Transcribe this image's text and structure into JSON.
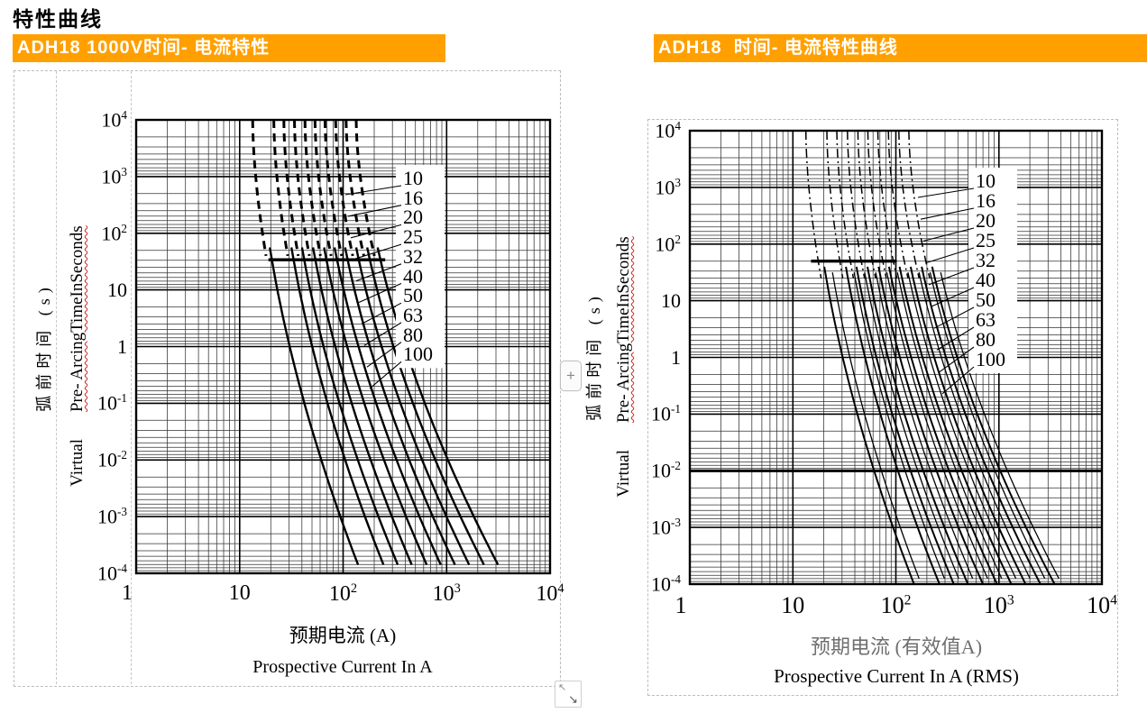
{
  "page": {
    "title": "特性曲线"
  },
  "panels": {
    "left_header": "ADH18 1000V时间- 电流特性",
    "right_header": "ADH18  时间- 电流特性曲线"
  },
  "colors": {
    "header_bg": "#FFA000",
    "header_text": "#FFFFFF",
    "spellcheck_underline": "#CC2222",
    "grid": "#000000"
  },
  "icons": {
    "plus": "+",
    "resize_nw": "↖",
    "resize_se": "↘"
  },
  "chart_data": [
    {
      "type": "line",
      "title": "ADH18 1000V时间- 电流特性",
      "x_scale": "log",
      "y_scale": "log",
      "xlim": [
        1,
        10000
      ],
      "ylim": [
        0.0001,
        10000
      ],
      "grid": "on",
      "x_ticks": [
        "1",
        "10",
        "10^2",
        "10^3",
        "10^4"
      ],
      "y_ticks": [
        "10^4",
        "10^3",
        "10^2",
        "10",
        "1",
        "10^-1",
        "10^-2",
        "10^-3",
        "10^-4"
      ],
      "xlabel_zh": "预期电流 (A)",
      "xlabel_en": "Prospective Current In A",
      "ylabel_zh": "弧前时间 (s)",
      "ylabel_en_plain": "Virtual",
      "ylabel_en_wavy": "Pre- ArcingTimeInSeconds",
      "curve_labels": [
        "10",
        "16",
        "20",
        "25",
        "32",
        "40",
        "50",
        "63",
        "80",
        "100"
      ],
      "upper_style": "dashed",
      "plateau": {
        "time_s": 34,
        "from_A": 19,
        "to_A": 255
      },
      "series": [
        {
          "name": "10",
          "rating_A": 10,
          "current_at_10000s_A": 15,
          "current_at_0.0001s_A": 150
        },
        {
          "name": "16",
          "rating_A": 16,
          "current_at_10000s_A": 24,
          "current_at_0.0001s_A": 265
        },
        {
          "name": "20",
          "rating_A": 20,
          "current_at_10000s_A": 30,
          "current_at_0.0001s_A": 365
        },
        {
          "name": "25",
          "rating_A": 25,
          "current_at_10000s_A": 38,
          "current_at_0.0001s_A": 500
        },
        {
          "name": "32",
          "rating_A": 32,
          "current_at_10000s_A": 48,
          "current_at_0.0001s_A": 700
        },
        {
          "name": "40",
          "rating_A": 40,
          "current_at_10000s_A": 60,
          "current_at_0.0001s_A": 960
        },
        {
          "name": "50",
          "rating_A": 50,
          "current_at_10000s_A": 75,
          "current_at_0.0001s_A": 1320
        },
        {
          "name": "63",
          "rating_A": 63,
          "current_at_10000s_A": 95,
          "current_at_0.0001s_A": 1815
        },
        {
          "name": "80",
          "rating_A": 80,
          "current_at_10000s_A": 120,
          "current_at_0.0001s_A": 2530
        },
        {
          "name": "100",
          "rating_A": 100,
          "current_at_10000s_A": 150,
          "current_at_0.0001s_A": 3470
        }
      ]
    },
    {
      "type": "line",
      "title": "ADH18 时间- 电流特性曲线",
      "x_scale": "log",
      "y_scale": "log",
      "xlim": [
        1,
        10000
      ],
      "ylim": [
        0.0001,
        10000
      ],
      "grid": "on",
      "x_ticks": [
        "1",
        "10",
        "10^2",
        "10^3",
        "10^4"
      ],
      "y_ticks": [
        "10^4",
        "10^3",
        "10^2",
        "10",
        "1",
        "10^-1",
        "10^-2",
        "10^-3",
        "10^-4"
      ],
      "xlabel_zh": "预期电流 (有效值A)",
      "xlabel_en": "Prospective Current In A (RMS)",
      "ylabel_zh": "弧前时间 (s)",
      "ylabel_en_plain": "Virtual",
      "ylabel_en_wavy": "Pre- ArcingTimeInSeconds",
      "curve_labels": [
        "10",
        "16",
        "20",
        "25",
        "32",
        "40",
        "50",
        "63",
        "80",
        "100"
      ],
      "upper_style": "dashdot",
      "plateau": {
        "time_s": 50,
        "from_A": 15,
        "to_A": 102
      },
      "series": [
        {
          "name": "10",
          "rating_A": 10,
          "current_at_10000s_A": 15,
          "current_at_0.0001s_A": 150
        },
        {
          "name": "16",
          "rating_A": 16,
          "current_at_10000s_A": 24,
          "current_at_0.0001s_A": 265
        },
        {
          "name": "20",
          "rating_A": 20,
          "current_at_10000s_A": 30,
          "current_at_0.0001s_A": 365
        },
        {
          "name": "25",
          "rating_A": 25,
          "current_at_10000s_A": 38,
          "current_at_0.0001s_A": 500
        },
        {
          "name": "32",
          "rating_A": 32,
          "current_at_10000s_A": 48,
          "current_at_0.0001s_A": 700
        },
        {
          "name": "40",
          "rating_A": 40,
          "current_at_10000s_A": 60,
          "current_at_0.0001s_A": 960
        },
        {
          "name": "50",
          "rating_A": 50,
          "current_at_10000s_A": 75,
          "current_at_0.0001s_A": 1320
        },
        {
          "name": "63",
          "rating_A": 63,
          "current_at_10000s_A": 95,
          "current_at_0.0001s_A": 1815
        },
        {
          "name": "80",
          "rating_A": 80,
          "current_at_10000s_A": 120,
          "current_at_0.0001s_A": 2530
        },
        {
          "name": "100",
          "rating_A": 100,
          "current_at_10000s_A": 150,
          "current_at_0.0001s_A": 3470
        }
      ]
    }
  ]
}
